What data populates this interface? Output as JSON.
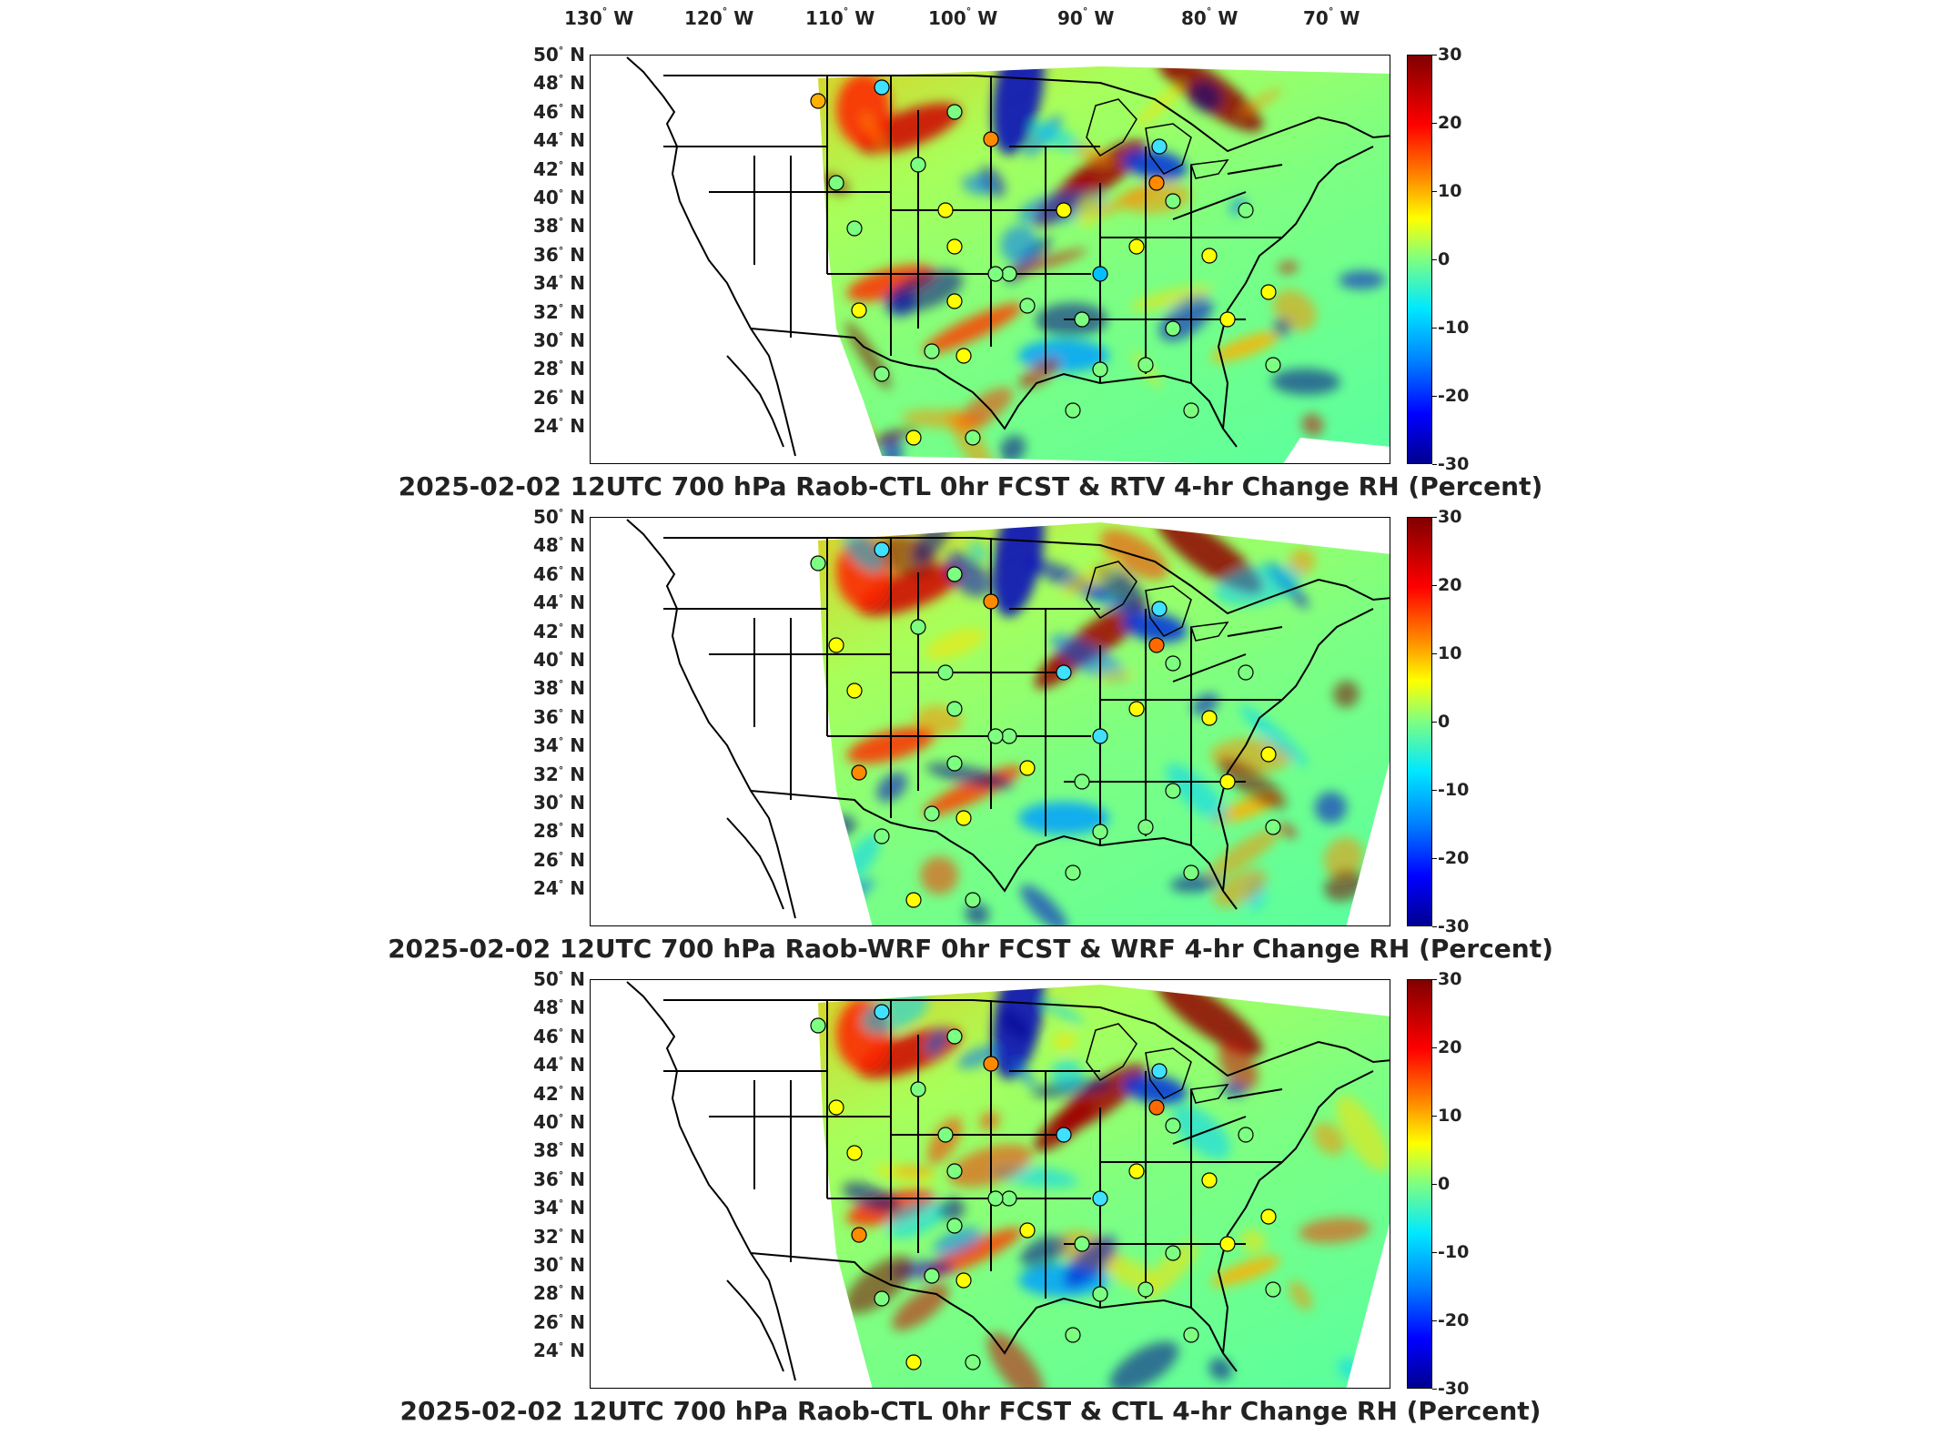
{
  "lon_labels": [
    "130",
    "120",
    "110",
    "100",
    "90",
    "80",
    "70"
  ],
  "lon_suffix": "W",
  "lat_labels": [
    "50",
    "48",
    "46",
    "44",
    "42",
    "40",
    "38",
    "36",
    "34",
    "32",
    "30",
    "28",
    "26",
    "24"
  ],
  "lat_suffix": "N",
  "colorbar": {
    "ticks": [
      "30",
      "20",
      "10",
      "0",
      "-10",
      "-20",
      "-30"
    ],
    "min": -30,
    "max": 30,
    "colors": [
      "#00008f",
      "#0000ff",
      "#0080ff",
      "#00e8ff",
      "#7dff82",
      "#ffff00",
      "#ff8a00",
      "#ff0000",
      "#800000"
    ]
  },
  "panels": [
    {
      "title": "2025-02-02 12UTC 700 hPa Raob-CTL 0hr FCST & RTV 4-hr Change RH (Percent)"
    },
    {
      "title": "2025-02-02 12UTC 700 hPa Raob-WRF 0hr FCST & WRF 4-hr Change RH (Percent)"
    },
    {
      "title": "2025-02-02 12UTC 700 hPa Raob-CTL 0hr FCST & CTL 4-hr Change RH (Percent)"
    }
  ]
}
